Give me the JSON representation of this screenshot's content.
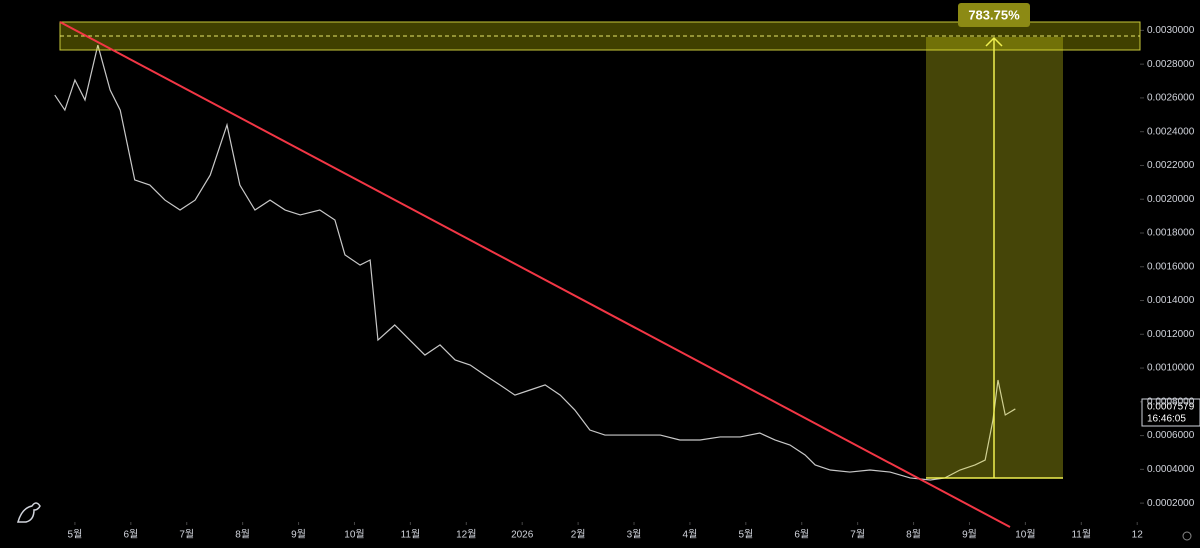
{
  "chart_data": {
    "type": "line",
    "x": [
      -0.36,
      -0.18,
      0,
      0.18,
      0.41,
      0.63,
      0.81,
      1.07,
      1.34,
      1.61,
      1.88,
      2.15,
      2.42,
      2.72,
      2.95,
      3.22,
      3.49,
      3.76,
      4.03,
      4.38,
      4.65,
      4.83,
      5.1,
      5.28,
      5.42,
      5.72,
      5.99,
      6.26,
      6.53,
      6.8,
      7.07,
      7.33,
      7.6,
      7.87,
      8.14,
      8.41,
      8.68,
      8.94,
      9.21,
      9.48,
      9.75,
      10.11,
      10.47,
      10.82,
      11.18,
      11.54,
      11.9,
      12.25,
      12.52,
      12.79,
      13.06,
      13.24,
      13.51,
      13.86,
      14.22,
      14.58,
      14.94,
      15.3,
      15.56,
      15.83,
      16.1,
      16.28,
      16.42,
      16.51,
      16.64,
      16.82
    ],
    "series": [
      {
        "color": "#c8c8c8",
        "values": [
          0.002617,
          0.002528,
          0.002706,
          0.002588,
          0.002913,
          0.002647,
          0.002528,
          0.002114,
          0.002084,
          0.001995,
          0.001936,
          0.001995,
          0.002143,
          0.00244,
          0.002084,
          0.001936,
          0.001995,
          0.001936,
          0.001907,
          0.001936,
          0.001877,
          0.00167,
          0.00161,
          0.00164,
          0.001166,
          0.001255,
          0.001166,
          0.001077,
          0.001137,
          0.001048,
          0.001018,
          0.000959,
          0.0009,
          0.00084,
          0.00087,
          0.0009,
          0.00084,
          0.000752,
          0.000633,
          0.000603,
          0.000603,
          0.000603,
          0.000603,
          0.000574,
          0.000574,
          0.000592,
          0.000592,
          0.000615,
          0.000574,
          0.000544,
          0.000485,
          0.000426,
          0.000396,
          0.000384,
          0.000396,
          0.000384,
          0.000349,
          0.000337,
          0.000349,
          0.000396,
          0.000426,
          0.000455,
          0.000692,
          0.000929,
          0.000722,
          0.0007579
        ]
      }
    ],
    "xlim": [
      -1.34,
      19.05
    ],
    "xticks": [
      {
        "value": 0,
        "label": "5월"
      },
      {
        "value": 1,
        "label": "6월"
      },
      {
        "value": 2,
        "label": "7월"
      },
      {
        "value": 3,
        "label": "8월"
      },
      {
        "value": 4,
        "label": "9월"
      },
      {
        "value": 5,
        "label": "10월"
      },
      {
        "value": 6,
        "label": "11월"
      },
      {
        "value": 7,
        "label": "12월"
      },
      {
        "value": 8,
        "label": "2026"
      },
      {
        "value": 9,
        "label": "2월"
      },
      {
        "value": 10,
        "label": "3월"
      },
      {
        "value": 11,
        "label": "4월"
      },
      {
        "value": 12,
        "label": "5월"
      },
      {
        "value": 13,
        "label": "6월"
      },
      {
        "value": 14,
        "label": "7월"
      },
      {
        "value": 15,
        "label": "8월"
      },
      {
        "value": 16,
        "label": "9월"
      },
      {
        "value": 17,
        "label": "10월"
      },
      {
        "value": 18,
        "label": "11월"
      },
      {
        "value": 19,
        "label": "12"
      }
    ],
    "ylim": [
      0.0001,
      0.00318
    ],
    "yticks": [
      {
        "value": 0.0002,
        "label": "0.0002000"
      },
      {
        "value": 0.0004,
        "label": "0.0004000"
      },
      {
        "value": 0.0006,
        "label": "0.0006000"
      },
      {
        "value": 0.0008,
        "label": "0.0008000"
      },
      {
        "value": 0.001,
        "label": "0.0010000"
      },
      {
        "value": 0.0012,
        "label": "0.0012000"
      },
      {
        "value": 0.0014,
        "label": "0.0014000"
      },
      {
        "value": 0.0016,
        "label": "0.0016000"
      },
      {
        "value": 0.0018,
        "label": "0.0018000"
      },
      {
        "value": 0.002,
        "label": "0.0020000"
      },
      {
        "value": 0.0022,
        "label": "0.0022000"
      },
      {
        "value": 0.0024,
        "label": "0.0024000"
      },
      {
        "value": 0.0026,
        "label": "0.0026000"
      },
      {
        "value": 0.0028,
        "label": "0.0028000"
      },
      {
        "value": 0.003,
        "label": "0.0030000"
      }
    ],
    "measure_label": "783.75%",
    "price_label": "0.0007579",
    "countdown": "16:46:05"
  }
}
